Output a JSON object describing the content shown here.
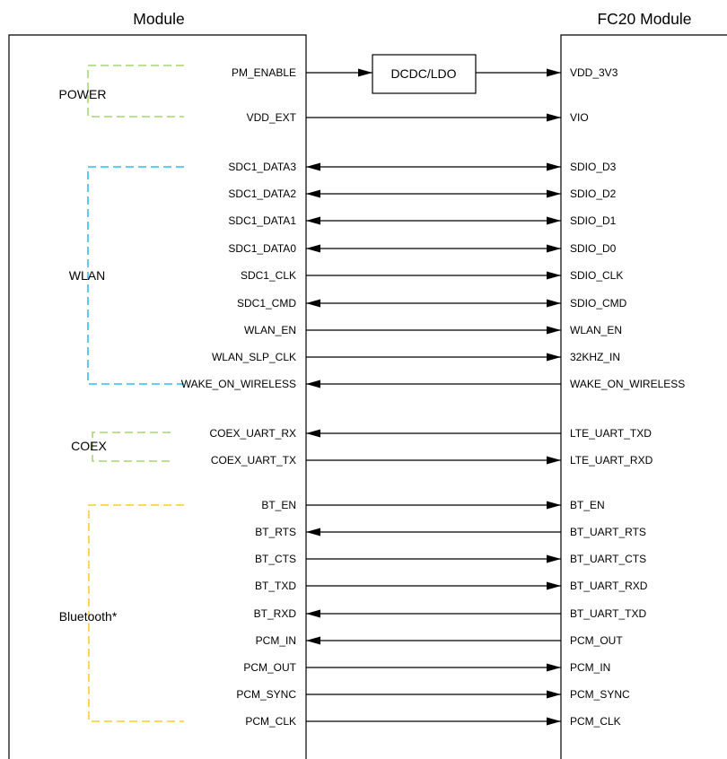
{
  "titles": {
    "left_module": "Module",
    "right_module": "FC20 Module"
  },
  "converter_label": "DCDC/LDO",
  "groups": [
    {
      "id": "power",
      "label": "POWER",
      "color": "#92d050"
    },
    {
      "id": "wlan",
      "label": "WLAN",
      "color": "#00b0f0"
    },
    {
      "id": "coex",
      "label": "COEX",
      "color": "#92d050"
    },
    {
      "id": "bt",
      "label": "Bluetooth*",
      "color": "#ffc000"
    }
  ],
  "signals": [
    {
      "left": "PM_ENABLE",
      "right": "VDD_3V3",
      "dir": "right",
      "via_converter": true
    },
    {
      "left": "VDD_EXT",
      "right": "VIO",
      "dir": "right"
    },
    {
      "left": "SDC1_DATA3",
      "right": "SDIO_D3",
      "dir": "both"
    },
    {
      "left": "SDC1_DATA2",
      "right": "SDIO_D2",
      "dir": "both"
    },
    {
      "left": "SDC1_DATA1",
      "right": "SDIO_D1",
      "dir": "both"
    },
    {
      "left": "SDC1_DATA0",
      "right": "SDIO_D0",
      "dir": "both"
    },
    {
      "left": "SDC1_CLK",
      "right": "SDIO_CLK",
      "dir": "right"
    },
    {
      "left": "SDC1_CMD",
      "right": "SDIO_CMD",
      "dir": "both"
    },
    {
      "left": "WLAN_EN",
      "right": "WLAN_EN",
      "dir": "right"
    },
    {
      "left": "WLAN_SLP_CLK",
      "right": "32KHZ_IN",
      "dir": "right"
    },
    {
      "left": "WAKE_ON_WIRELESS",
      "right": "WAKE_ON_WIRELESS",
      "dir": "left"
    },
    {
      "left": "COEX_UART_RX",
      "right": "LTE_UART_TXD",
      "dir": "left"
    },
    {
      "left": "COEX_UART_TX",
      "right": "LTE_UART_RXD",
      "dir": "right"
    },
    {
      "left": "BT_EN",
      "right": "BT_EN",
      "dir": "right"
    },
    {
      "left": "BT_RTS",
      "right": "BT_UART_RTS",
      "dir": "left"
    },
    {
      "left": "BT_CTS",
      "right": "BT_UART_CTS",
      "dir": "right"
    },
    {
      "left": "BT_TXD",
      "right": "BT_UART_RXD",
      "dir": "right"
    },
    {
      "left": "BT_RXD",
      "right": "BT_UART_TXD",
      "dir": "left"
    },
    {
      "left": "PCM_IN",
      "right": "PCM_OUT",
      "dir": "left"
    },
    {
      "left": "PCM_OUT",
      "right": "PCM_IN",
      "dir": "right"
    },
    {
      "left": "PCM_SYNC",
      "right": "PCM_SYNC",
      "dir": "right"
    },
    {
      "left": "PCM_CLK",
      "right": "PCM_CLK",
      "dir": "right"
    }
  ]
}
